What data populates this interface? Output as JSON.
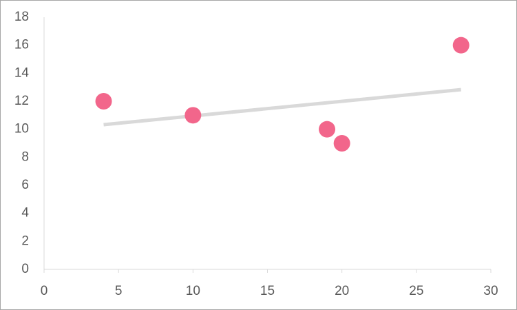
{
  "chart_data": {
    "type": "scatter",
    "series": [
      {
        "color": "#f2668b",
        "x": [
          4,
          10,
          19,
          20,
          28
        ],
        "values": [
          12,
          11,
          10,
          9,
          16
        ]
      }
    ],
    "trendline": "linear",
    "trendline_color": "#d9d9d9",
    "xlim": [
      0,
      30
    ],
    "xticks": [
      0,
      5,
      10,
      15,
      20,
      25,
      30
    ],
    "ylim": [
      0,
      18
    ],
    "yticks": [
      0,
      2,
      4,
      6,
      8,
      10,
      12,
      14,
      16,
      18
    ]
  }
}
